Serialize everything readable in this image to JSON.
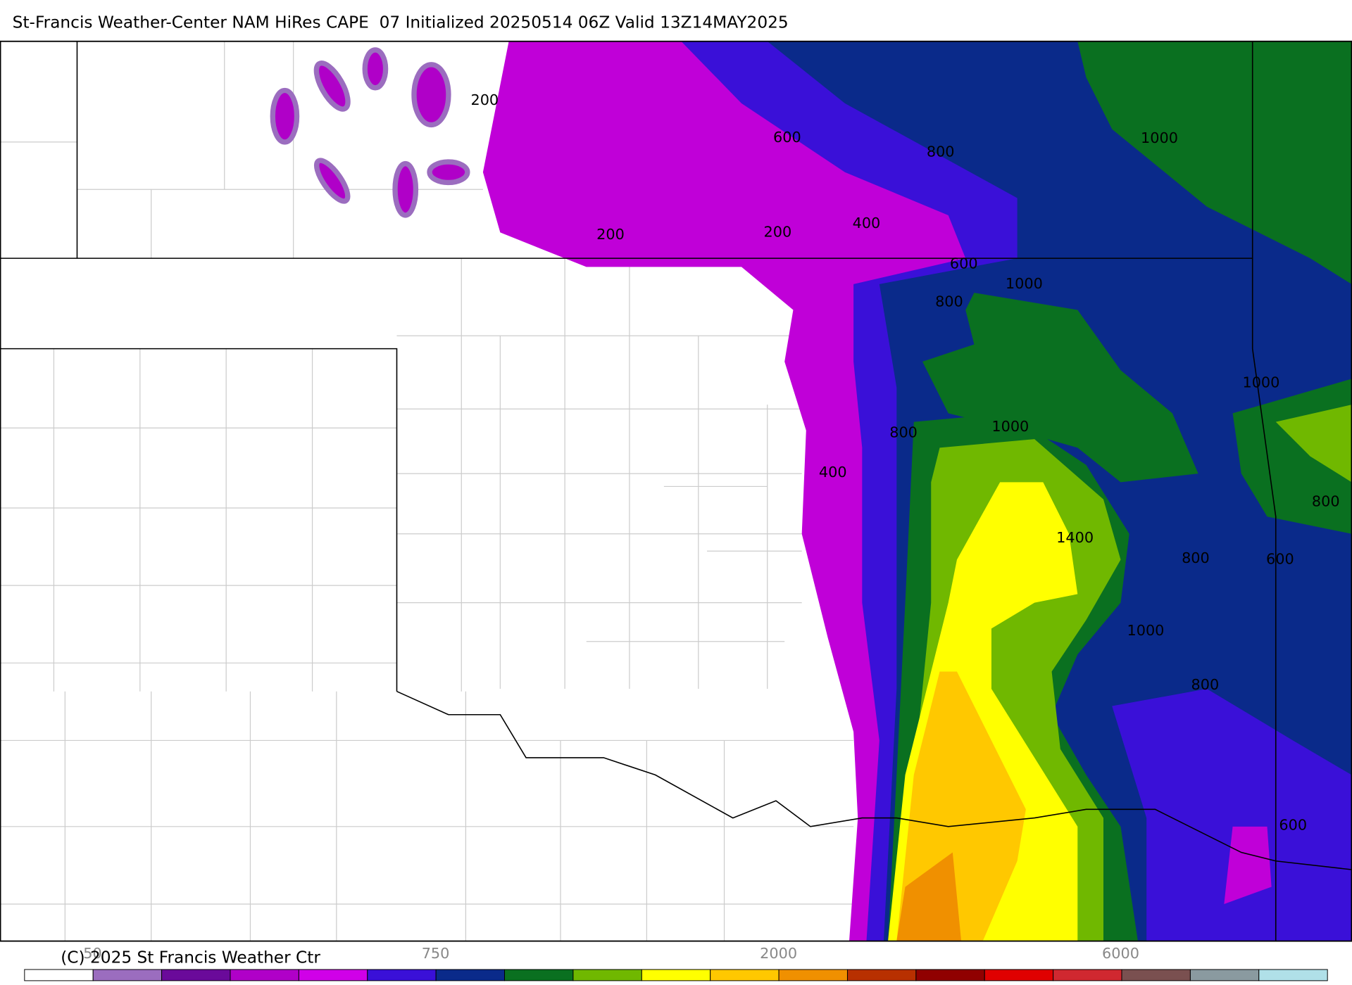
{
  "title": "St-Francis Weather-Center NAM HiRes CAPE  07 Initialized 20250514 06Z Valid 13Z14MAY2025",
  "contour_labels": [
    "200",
    "600",
    "800",
    "1000",
    "200",
    "200",
    "400",
    "600",
    "1000",
    "800",
    "1000",
    "800",
    "1000",
    "400",
    "800",
    "1400",
    "800",
    "600",
    "1000",
    "800",
    "600"
  ],
  "colorbar": {
    "labels": [
      "50",
      "750",
      "2000",
      "6000"
    ],
    "colors": [
      "#ffffff",
      "#9b6dbf",
      "#6a0a9a",
      "#b000c8",
      "#d000e8",
      "#3a10d8",
      "#0a2a8a",
      "#0a7020",
      "#70b800",
      "#ffff00",
      "#ffc800",
      "#f09000",
      "#b83000",
      "#900000",
      "#e00000",
      "#d02830",
      "#7a5050",
      "#8a9aa0",
      "#b0e0e8"
    ]
  },
  "copyright": "(C) 2025 St Francis Weather Ctr"
}
